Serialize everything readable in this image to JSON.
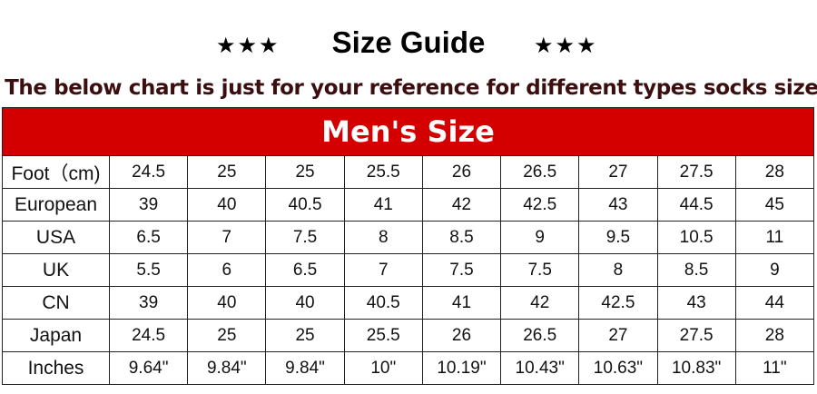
{
  "header": {
    "title": "Size Guide",
    "stars_left": "★★★",
    "stars_right": "★★★",
    "subtitle": "The below chart is just for your reference for different types socks size."
  },
  "table": {
    "title": "Men's Size",
    "rows": [
      {
        "label": "Foot（cm)",
        "values": [
          "24.5",
          "25",
          "25",
          "25.5",
          "26",
          "26.5",
          "27",
          "27.5",
          "28"
        ]
      },
      {
        "label": "European",
        "values": [
          "39",
          "40",
          "40.5",
          "41",
          "42",
          "42.5",
          "43",
          "44.5",
          "45"
        ]
      },
      {
        "label": "USA",
        "values": [
          "6.5",
          "7",
          "7.5",
          "8",
          "8.5",
          "9",
          "9.5",
          "10.5",
          "11"
        ]
      },
      {
        "label": "UK",
        "values": [
          "5.5",
          "6",
          "6.5",
          "7",
          "7.5",
          "7.5",
          "8",
          "8.5",
          "9"
        ]
      },
      {
        "label": "CN",
        "values": [
          "39",
          "40",
          "40",
          "40.5",
          "41",
          "42",
          "42.5",
          "43",
          "44"
        ]
      },
      {
        "label": "Japan",
        "values": [
          "24.5",
          "25",
          "25",
          "25.5",
          "26",
          "26.5",
          "27",
          "27.5",
          "28"
        ]
      },
      {
        "label": "Inches",
        "values": [
          "9.64\"",
          "9.84\"",
          "9.84\"",
          "10\"",
          "10.19\"",
          "10.43\"",
          "10.63\"",
          "10.83\"",
          "11\""
        ]
      }
    ]
  },
  "colors": {
    "header_bg": "#d40000",
    "subtitle": "#3b0f0f"
  }
}
